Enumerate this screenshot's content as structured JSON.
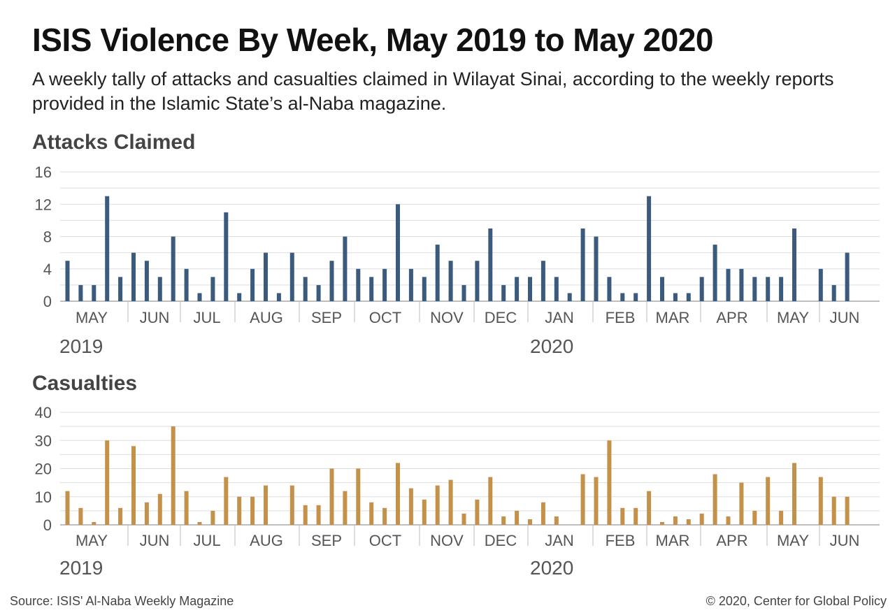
{
  "title": "ISIS Violence By Week, May 2019 to May 2020",
  "subtitle": "A weekly tally of attacks and casualties claimed in Wilayat Sinai, according to the weekly reports provided in the Islamic State’s al-Naba magazine.",
  "footer": {
    "source": "Source: ISIS' Al-Naba Weekly Magazine",
    "copyright": "© 2020, Center for Global Policy"
  },
  "colors": {
    "attacks": "#3a5a7e",
    "casualties": "#c4914a",
    "grid": "#dddddd",
    "axis_text": "#555555"
  },
  "chart_data": [
    {
      "type": "bar",
      "title": "Attacks Claimed",
      "ylim": [
        0,
        16
      ],
      "yticks": [
        0,
        4,
        8,
        12,
        16
      ],
      "months": [
        "MAY",
        "JUN",
        "JUL",
        "AUG",
        "SEP",
        "OCT",
        "NOV",
        "DEC",
        "JAN",
        "FEB",
        "MAR",
        "APR",
        "MAY",
        "JUN"
      ],
      "years": [
        "2019",
        "2020"
      ],
      "values": [
        5,
        2,
        2,
        13,
        3,
        6,
        5,
        3,
        8,
        4,
        1,
        3,
        11,
        1,
        4,
        6,
        1,
        6,
        3,
        2,
        5,
        8,
        4,
        3,
        4,
        12,
        4,
        3,
        7,
        5,
        2,
        5,
        9,
        2,
        3,
        3,
        5,
        3,
        1,
        9,
        8,
        3,
        1,
        1,
        13,
        3,
        1,
        1,
        3,
        7,
        4,
        4,
        3,
        3,
        3,
        9,
        0,
        4,
        2,
        6
      ]
    },
    {
      "type": "bar",
      "title": "Casualties",
      "ylim": [
        0,
        40
      ],
      "yticks": [
        0,
        10,
        20,
        30,
        40
      ],
      "months": [
        "MAY",
        "JUN",
        "JUL",
        "AUG",
        "SEP",
        "OCT",
        "NOV",
        "DEC",
        "JAN",
        "FEB",
        "MAR",
        "APR",
        "MAY",
        "JUN"
      ],
      "years": [
        "2019",
        "2020"
      ],
      "values": [
        12,
        6,
        1,
        30,
        6,
        28,
        8,
        11,
        35,
        12,
        1,
        5,
        17,
        10,
        10,
        14,
        0,
        14,
        7,
        7,
        20,
        12,
        20,
        8,
        6,
        22,
        13,
        9,
        14,
        16,
        4,
        9,
        17,
        3,
        5,
        2,
        8,
        3,
        0,
        18,
        17,
        30,
        6,
        6,
        12,
        1,
        3,
        2,
        4,
        18,
        3,
        15,
        5,
        17,
        5,
        22,
        0,
        17,
        10,
        10
      ]
    }
  ]
}
